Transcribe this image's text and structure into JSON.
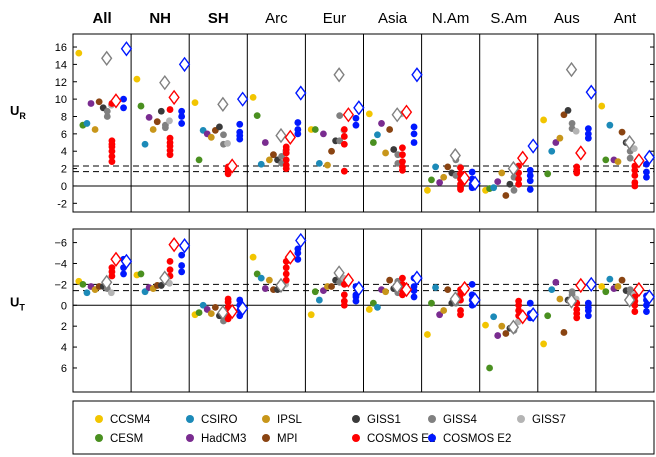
{
  "chart_data": {
    "type": "scatter",
    "regions": [
      "All",
      "NH",
      "SH",
      "Arc",
      "Eur",
      "Asia",
      "N.Am",
      "S.Am",
      "Aus",
      "Ant"
    ],
    "region_bold": [
      true,
      true,
      true,
      false,
      false,
      false,
      false,
      false,
      false,
      false
    ],
    "series": [
      {
        "name": "CCSM4",
        "color": "#f2c500",
        "marker": "circle"
      },
      {
        "name": "CESM",
        "color": "#4a9020",
        "marker": "circle"
      },
      {
        "name": "CSIRO",
        "color": "#1c8ab8",
        "marker": "circle"
      },
      {
        "name": "HadCM3",
        "color": "#7a2c90",
        "marker": "circle"
      },
      {
        "name": "IPSL",
        "color": "#c8961a",
        "marker": "circle"
      },
      {
        "name": "MPI",
        "color": "#8a4412",
        "marker": "circle"
      },
      {
        "name": "GISS1",
        "color": "#3a3a3a",
        "marker": "circle"
      },
      {
        "name": "GISS4",
        "color": "#808080",
        "marker": "circle"
      },
      {
        "name": "GISS7",
        "color": "#b4b4b4",
        "marker": "circle"
      },
      {
        "name": "COSMOS E1",
        "color": "#ff0000",
        "marker": "circle"
      },
      {
        "name": "COSMOS E2",
        "color": "#0018ff",
        "marker": "circle"
      }
    ],
    "panels": [
      {
        "label_main": "U",
        "label_sub": "R",
        "ylim": [
          -3,
          17.5
        ],
        "inverted": false,
        "ticks": [
          -2,
          0,
          2,
          4,
          6,
          8,
          10,
          12,
          14,
          16
        ],
        "tick_labels": [
          "-2",
          "0",
          "2",
          "4",
          "6",
          "8",
          "10",
          "12",
          "14",
          "16"
        ],
        "zero_line": 0,
        "dashed_lines": [
          1.65,
          2.3
        ],
        "points": [
          [
            [
              15.3
            ],
            [
              7.0
            ],
            [
              7.2
            ],
            [
              9.5
            ],
            [
              6.5
            ],
            [
              9.7
            ],
            [
              9.0
            ],
            [
              8.0,
              8.6
            ],
            [
              9.3
            ],
            [
              5.2,
              4.8,
              4.5,
              4.0,
              3.4,
              2.8,
              9.5
            ],
            [
              9.0,
              10.0
            ]
          ],
          [
            [
              12.3
            ],
            [
              9.2
            ],
            [
              4.8
            ],
            [
              7.9
            ],
            [
              6.5
            ],
            [
              7.4
            ],
            [
              8.6
            ],
            [
              6.7,
              7.0
            ],
            [
              7.5
            ],
            [
              5.5,
              5.0,
              4.6,
              4.1,
              3.6,
              8.8
            ],
            [
              7.2,
              8.0,
              8.6
            ]
          ],
          [
            [
              9.6
            ],
            [
              3.0
            ],
            [
              6.4
            ],
            [
              6.0
            ],
            [
              5.6
            ],
            [
              6.4
            ],
            [
              6.8
            ],
            [
              4.8,
              5.9
            ],
            [
              4.9
            ],
            [
              2.2,
              2.0,
              1.7,
              1.4
            ],
            [
              5.4,
              5.8,
              6.2,
              7.1
            ]
          ],
          [
            [
              10.2
            ],
            [
              8.1
            ],
            [
              2.5
            ],
            [
              5.0
            ],
            [
              3.0
            ],
            [
              3.6
            ],
            [
              3.0
            ],
            [
              2.6,
              3.4
            ],
            [
              4.0
            ],
            [
              2.0,
              2.4,
              3.0,
              3.8,
              4.2,
              4.5
            ],
            [
              6.0,
              6.5,
              7.3
            ]
          ],
          [
            [
              6.5
            ],
            [
              6.5
            ],
            [
              2.6
            ],
            [
              6.0
            ],
            [
              2.4
            ],
            [
              4.0
            ],
            [
              5.2
            ],
            [
              5.2,
              8.1
            ],
            [
              6.4
            ],
            [
              1.7,
              4.8,
              5.7,
              6.5
            ],
            [
              7.0,
              7.8
            ]
          ],
          [
            [
              8.3
            ],
            [
              5.0
            ],
            [
              5.9
            ],
            [
              7.2
            ],
            [
              3.8
            ],
            [
              6.5
            ],
            [
              4.2
            ],
            [
              2.6,
              3.6
            ],
            [
              8.3
            ],
            [
              1.8,
              2.2,
              2.8,
              3.6,
              4.4
            ],
            [
              5.0,
              6.0,
              6.8
            ]
          ],
          [
            [
              -0.5
            ],
            [
              0.7
            ],
            [
              2.2
            ],
            [
              0.4
            ],
            [
              1.0
            ],
            [
              2.2
            ],
            [
              1.5
            ],
            [
              1.2,
              3.0
            ],
            [
              2.2
            ],
            [
              -0.4,
              -0.2,
              0.2,
              0.8,
              1.4,
              2.1
            ],
            [
              -0.2,
              0.2,
              0.8,
              1.6
            ]
          ],
          [
            [
              -0.5
            ],
            [
              -0.3
            ],
            [
              -0.2
            ],
            [
              0.5
            ],
            [
              1.5
            ],
            [
              -1.1
            ],
            [
              0.2
            ],
            [
              -0.5,
              1.0
            ],
            [
              1.5
            ],
            [
              0.2,
              0.8,
              1.5,
              2.3
            ],
            [
              -0.4,
              0.6,
              1.2,
              1.8
            ]
          ],
          [
            [
              7.6
            ],
            [
              1.4
            ],
            [
              4.0
            ],
            [
              5.0
            ],
            [
              5.5
            ],
            [
              8.2
            ],
            [
              8.7
            ],
            [
              6.6,
              7.2
            ],
            [
              6.3
            ],
            [
              1.5,
              1.8,
              2.2
            ],
            [
              5.5,
              6.0,
              6.6
            ]
          ],
          [
            [
              9.2
            ],
            [
              3.0
            ],
            [
              7.0
            ],
            [
              3.0
            ],
            [
              2.8
            ],
            [
              6.2
            ],
            [
              5.0
            ],
            [
              3.2,
              4.0
            ],
            [
              4.3
            ],
            [
              0.0,
              0.4,
              1.2,
              1.8,
              2.3
            ],
            [
              1.0,
              1.6,
              2.5
            ]
          ]
        ],
        "diamonds": [
          {
            "E1": 9.8,
            "E2": 15.8,
            "GISS4": 14.7
          },
          {
            "E1": 10.2,
            "E2": 14.0,
            "GISS4": 11.9
          },
          {
            "E1": 2.3,
            "E2": 10.0,
            "GISS4": 9.4
          },
          {
            "E1": 5.6,
            "E2": 10.7,
            "GISS4": 5.8
          },
          {
            "E1": 8.2,
            "E2": 9.0,
            "GISS4": 12.8
          },
          {
            "E1": 8.5,
            "E2": 12.8,
            "GISS4": 8.2
          },
          {
            "E1": 0.9,
            "E2": 0.3,
            "GISS4": 3.5
          },
          {
            "E1": 3.2,
            "E2": 4.6,
            "GISS4": 2.0
          },
          {
            "E1": 3.8,
            "E2": 10.8,
            "GISS4": 13.4
          },
          {
            "E1": 2.9,
            "E2": 3.3,
            "GISS4": 5.0
          }
        ]
      },
      {
        "label_main": "U",
        "label_sub": "T",
        "ylim": [
          -7.3,
          8.3
        ],
        "inverted": true,
        "ticks": [
          -6,
          -4,
          -2,
          0,
          2,
          4,
          6
        ],
        "tick_labels": [
          "−6",
          "−4",
          "−2",
          "0",
          "2",
          "4",
          "6"
        ],
        "zero_line": 0,
        "dashed_lines": [
          -2.0,
          -1.4
        ],
        "points": [
          [
            [
              -2.3
            ],
            [
              -2.0
            ],
            [
              -1.2
            ],
            [
              -1.8
            ],
            [
              -1.5
            ],
            [
              -1.8
            ],
            [
              -1.8
            ],
            [
              -1.6,
              -2.2
            ],
            [
              -1.2
            ],
            [
              -2.8,
              -3.2,
              -3.6
            ],
            [
              -3.0,
              -3.6,
              -4.4
            ]
          ],
          [
            [
              -2.9
            ],
            [
              -3.0
            ],
            [
              -1.3
            ],
            [
              -1.7
            ],
            [
              -1.6
            ],
            [
              -1.9
            ],
            [
              -1.9
            ],
            [
              -2.3,
              -2.6
            ],
            [
              -2.1
            ],
            [
              -2.8,
              -3.4,
              -4.2
            ],
            [
              -3.2,
              -3.8,
              -4.8
            ]
          ],
          [
            [
              0.9
            ],
            [
              0.7
            ],
            [
              0.0
            ],
            [
              0.4
            ],
            [
              0.8
            ],
            [
              0.2
            ],
            [
              1.0
            ],
            [
              1.5,
              0.5
            ],
            [
              1.0
            ],
            [
              0.2,
              0.8,
              1.3,
              -0.3,
              -0.6
            ],
            [
              0.0,
              0.5,
              1.0,
              -0.5
            ]
          ],
          [
            [
              -4.6
            ],
            [
              -3.0
            ],
            [
              -2.6
            ],
            [
              -1.6
            ],
            [
              -2.4
            ],
            [
              -1.5
            ],
            [
              -1.5
            ],
            [
              -2.0,
              -1.7
            ],
            [
              -2.0
            ],
            [
              -3.0,
              -3.6,
              -4.2,
              -2.4
            ],
            [
              -4.4,
              -5.0,
              -5.4
            ]
          ],
          [
            [
              0.9
            ],
            [
              -1.3
            ],
            [
              -0.5
            ],
            [
              -1.4
            ],
            [
              -1.8
            ],
            [
              -1.8
            ],
            [
              -2.4
            ],
            [
              -2.8,
              -2.2
            ],
            [
              -2.6
            ],
            [
              -0.4,
              0.0,
              -1.0,
              -2.0
            ],
            [
              -1.0,
              -0.4,
              -0.8,
              -1.8
            ]
          ],
          [
            [
              0.4
            ],
            [
              -0.2
            ],
            [
              0.2
            ],
            [
              -1.5
            ],
            [
              -1.3
            ],
            [
              -2.4
            ],
            [
              -1.6
            ],
            [
              -1.2,
              -2.3
            ],
            [
              -1.4
            ],
            [
              -1.0,
              -1.4,
              -2.0,
              -2.6
            ],
            [
              -0.8,
              -1.4,
              -1.8,
              -2.6
            ]
          ],
          [
            [
              2.8
            ],
            [
              -0.2
            ],
            [
              -1.7
            ],
            [
              0.9
            ],
            [
              0.5
            ],
            [
              -1.5
            ],
            [
              -0.2
            ],
            [
              -0.4,
              -0.2
            ],
            [
              -1.2
            ],
            [
              -0.5,
              -1.0,
              -1.5,
              0.5,
              0.9
            ],
            [
              0.0,
              -0.5,
              -1.0,
              -2.0
            ]
          ],
          [
            [
              1.9
            ],
            [
              6.0
            ],
            [
              1.1
            ],
            [
              2.9
            ],
            [
              2.0
            ],
            [
              2.7
            ],
            [
              2.2
            ],
            [
              2.4,
              1.9
            ],
            [
              1.6
            ],
            [
              0.0,
              0.5,
              1.0,
              -0.4
            ],
            [
              0.8,
              1.2,
              -0.2
            ]
          ],
          [
            [
              3.7
            ],
            [
              1.0
            ],
            [
              -1.5
            ],
            [
              -2.2
            ],
            [
              -0.6
            ],
            [
              2.6
            ],
            [
              -0.5
            ],
            [
              -1.3,
              -1.0
            ],
            [
              -0.6
            ],
            [
              -0.2,
              0.4,
              0.8,
              1.2
            ],
            [
              -0.2,
              0.5,
              1.0,
              0.2
            ]
          ],
          [
            [
              -1.8
            ],
            [
              -1.3
            ],
            [
              -2.5
            ],
            [
              -1.6
            ],
            [
              -1.8
            ],
            [
              -2.4
            ],
            [
              -1.4
            ],
            [
              -1.5,
              -1.1
            ],
            [
              -1.0
            ],
            [
              -0.8,
              -0.4,
              0.0,
              0.6
            ],
            [
              -0.5,
              0.0,
              0.6,
              -0.9
            ]
          ]
        ],
        "diamonds": [
          {
            "E1": -4.4,
            "E2": -4.2,
            "GISS4": -2.2
          },
          {
            "E1": -5.8,
            "E2": -5.7,
            "GISS4": -2.6
          },
          {
            "E1": 0.6,
            "E2": 0.3,
            "GISS4": 0.7
          },
          {
            "E1": -4.6,
            "E2": -6.2,
            "GISS4": -1.9
          },
          {
            "E1": -2.4,
            "E2": -1.6,
            "GISS4": -3.1
          },
          {
            "E1": -1.5,
            "E2": -2.6,
            "GISS4": -1.8
          },
          {
            "E1": -1.6,
            "E2": -0.5,
            "GISS4": -0.6
          },
          {
            "E1": 1.1,
            "E2": 0.9,
            "GISS4": 2.1
          },
          {
            "E1": -1.9,
            "E2": -2.0,
            "GISS4": -0.4
          },
          {
            "E1": -1.5,
            "E2": -0.8,
            "GISS4": -0.5
          }
        ]
      }
    ],
    "legend": {
      "placement": "bottom",
      "columns": [
        [
          "CCSM4",
          "CESM"
        ],
        [
          "CSIRO",
          "HadCM3"
        ],
        [
          "IPSL",
          "MPI"
        ],
        [
          "GISS1",
          "COSMOS E1"
        ],
        [
          "GISS4",
          "COSMOS E2"
        ],
        [
          "GISS7"
        ]
      ]
    },
    "grid": false
  }
}
